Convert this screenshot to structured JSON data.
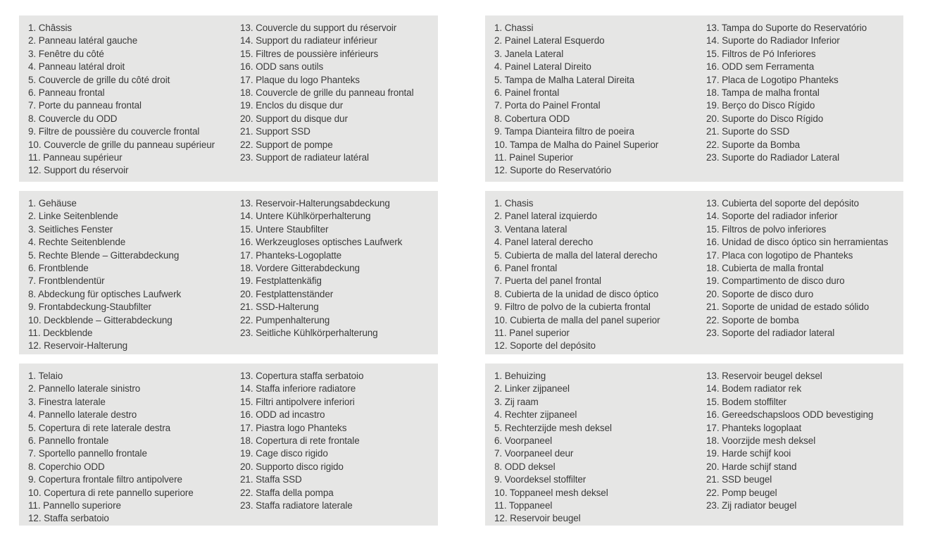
{
  "colors": {
    "page_background": "#ffffff",
    "panel_background": "#e6e6e5",
    "text": "#3a3a3a"
  },
  "panels": [
    {
      "col1": [
        "1. Châssis",
        "2. Panneau latéral gauche",
        "3. Fenêtre du côté",
        "4. Panneau latéral droit",
        "5. Couvercle de grille du côté droit",
        "6. Panneau frontal",
        "7. Porte du panneau frontal",
        "8. Couvercle du ODD",
        "9. Filtre de poussière du couvercle frontal",
        "10. Couvercle de grille du panneau supérieur",
        "11. Panneau supérieur",
        "12. Support du réservoir"
      ],
      "col2": [
        "13. Couvercle du support du réservoir",
        "14. Support du radiateur inférieur",
        "15. Filtres de poussière inférieurs",
        "16. ODD sans outils",
        "17. Plaque du logo Phanteks",
        "18. Couvercle de grille du panneau frontal",
        "19. Enclos du disque dur",
        "20. Support du disque dur",
        "21. Support SSD",
        "22. Support de pompe",
        "23. Support de radiateur latéral"
      ]
    },
    {
      "col1": [
        "1. Chassi",
        "2. Painel Lateral Esquerdo",
        "3. Janela Lateral",
        "4. Painel Lateral Direito",
        "5. Tampa de Malha Lateral Direita",
        "6. Painel frontal",
        "7. Porta do Painel Frontal",
        "8. Cobertura ODD",
        "9. Tampa Dianteira filtro de poeira",
        "10. Tampa de Malha do Painel Superior",
        "11. Painel Superior",
        "12. Suporte do Reservatório"
      ],
      "col2": [
        "13. Tampa do Suporte do Reservatório",
        "14. Suporte do Radiador Inferior",
        "15. Filtros de Pó Inferiores",
        "16. ODD sem Ferramenta",
        "17. Placa de Logotipo Phanteks",
        "18. Tampa de malha frontal",
        "19. Berço do Disco Rígido",
        "20. Suporte do Disco Rígido",
        "21. Suporte do SSD",
        "22. Suporte da Bomba",
        "23. Suporte do Radiador Lateral"
      ]
    },
    {
      "col1": [
        "1. Gehäuse",
        "2. Linke Seitenblende",
        "3. Seitliches Fenster",
        "4. Rechte Seitenblende",
        "5. Rechte Blende – Gitterabdeckung",
        "6. Frontblende",
        "7. Frontblendentür",
        "8. Abdeckung für optisches Laufwerk",
        "9. Frontabdeckung-Staubfilter",
        "10. Deckblende – Gitterabdeckung",
        "11. Deckblende",
        "12. Reservoir-Halterung"
      ],
      "col2": [
        "13. Reservoir-Halterungsabdeckung",
        "14. Untere Kühlkörperhalterung",
        "15. Untere Staubfilter",
        "16. Werkzeugloses optisches Laufwerk",
        "17. Phanteks-Logoplatte",
        "18. Vordere Gitterabdeckung",
        "19. Festplattenkäfig",
        "20. Festplattenständer",
        "21. SSD-Halterung",
        "22. Pumpenhalterung",
        "23. Seitliche Kühlkörperhalterung"
      ]
    },
    {
      "col1": [
        "1. Chasis",
        "2. Panel lateral izquierdo",
        "3. Ventana lateral",
        "4. Panel lateral derecho",
        "5. Cubierta de malla del lateral derecho",
        "6. Panel frontal",
        "7. Puerta del panel frontal",
        "8. Cubierta de la unidad de disco óptico",
        "9. Filtro de polvo de la cubierta frontal",
        "10. Cubierta de malla del panel superior",
        "11. Panel superior",
        "12. Soporte del depósito"
      ],
      "col2": [
        "13. Cubierta del soporte del depósito",
        "14. Soporte del radiador inferior",
        "15. Filtros de polvo inferiores",
        "16. Unidad de disco óptico sin herramientas",
        "17. Placa con logotipo de Phanteks",
        "18. Cubierta de malla frontal",
        "19. Compartimento de disco duro",
        "20. Soporte de disco duro",
        "21. Soporte de unidad de estado sólido",
        "22. Soporte de bomba",
        "23. Soporte del radiador lateral"
      ]
    },
    {
      "col1": [
        "1. Telaio",
        "2. Pannello laterale sinistro",
        "3. Finestra laterale",
        "4. Pannello laterale destro",
        "5. Copertura di rete laterale destra",
        "6. Pannello frontale",
        "7. Sportello pannello frontale",
        "8. Coperchio ODD",
        "9. Copertura frontale filtro antipolvere",
        "10. Copertura di rete pannello superiore",
        "11. Pannello superiore",
        "12. Staffa serbatoio"
      ],
      "col2": [
        "13. Copertura staffa serbatoio",
        "14. Staffa inferiore radiatore",
        "15. Filtri antipolvere inferiori",
        "16. ODD ad incastro",
        "17. Piastra logo Phanteks",
        "18. Copertura di rete frontale",
        "19. Cage disco rigido",
        "20. Supporto disco rigido",
        "21. Staffa SSD",
        "22. Staffa della pompa",
        "23. Staffa radiatore laterale"
      ]
    },
    {
      "col1": [
        "1. Behuizing",
        "2. Linker zijpaneel",
        "3. Zij raam",
        "4. Rechter zijpaneel",
        "5. Rechterzijde mesh deksel",
        "6. Voorpaneel",
        "7. Voorpaneel deur",
        "8. ODD deksel",
        "9. Voordeksel stoffilter",
        "10. Toppaneel mesh deksel",
        "11. Toppaneel",
        "12. Reservoir beugel"
      ],
      "col2": [
        "13. Reservoir beugel deksel",
        "14. Bodem radiator rek",
        "15. Bodem stoffilter",
        "16. Gereedschapsloos ODD bevestiging",
        "17. Phanteks logoplaat",
        "18. Voorzijde mesh deksel",
        "19. Harde schijf kooi",
        "20. Harde schijf stand",
        "21. SSD beugel",
        "22. Pomp beugel",
        "23. Zij radiator beugel"
      ]
    }
  ]
}
